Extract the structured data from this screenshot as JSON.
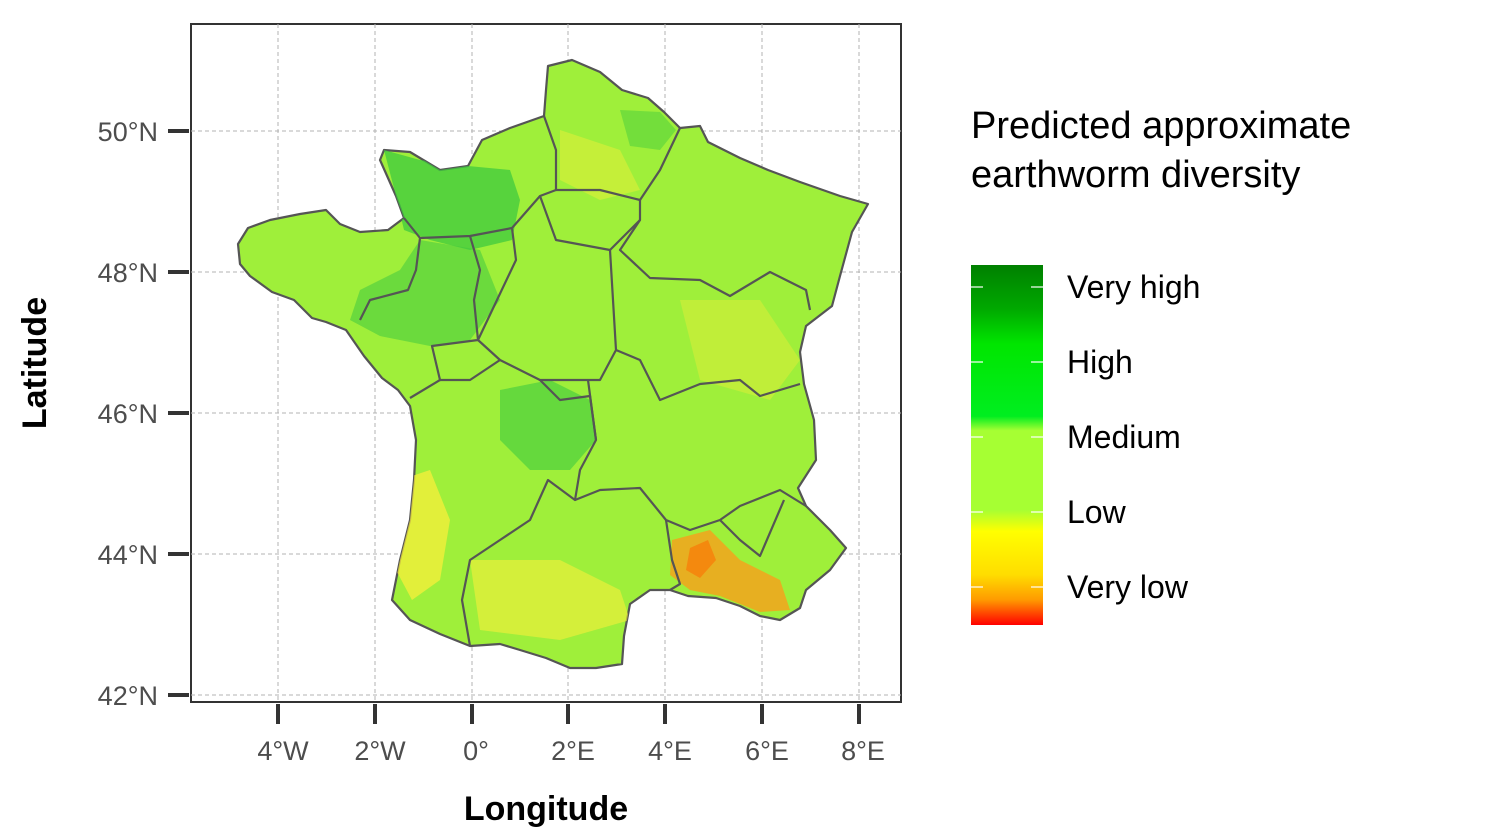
{
  "map": {
    "type": "choropleth-raster",
    "xlabel": "Longitude",
    "ylabel": "Latitude",
    "xlim": [
      -6,
      8.8
    ],
    "ylim": [
      42,
      51.5
    ],
    "x_ticks": [
      {
        "value": -4,
        "label": "4°W"
      },
      {
        "value": -2,
        "label": "2°W"
      },
      {
        "value": 0,
        "label": "0°"
      },
      {
        "value": 2,
        "label": "2°E"
      },
      {
        "value": 4,
        "label": "4°E"
      },
      {
        "value": 6,
        "label": "6°E"
      },
      {
        "value": 8,
        "label": "8°E"
      }
    ],
    "y_ticks": [
      {
        "value": 42,
        "label": "42°N"
      },
      {
        "value": 44,
        "label": "44°N"
      },
      {
        "value": 46,
        "label": "46°N"
      },
      {
        "value": 48,
        "label": "48°N"
      },
      {
        "value": 50,
        "label": "50°N"
      }
    ],
    "grid": true,
    "legend": {
      "title_line1": "Predicted approximate",
      "title_line2": "earthworm diversity",
      "placement": "right",
      "levels": [
        "Very high",
        "High",
        "Medium",
        "Low",
        "Very low"
      ],
      "gradient_colors": [
        {
          "level": "Very high",
          "color": "#008000"
        },
        {
          "level": "High",
          "color": "#00e600"
        },
        {
          "level": "Medium",
          "color": "#a6ff33"
        },
        {
          "level": "Low",
          "color": "#ffff00"
        },
        {
          "level": "Very low",
          "color": "#ff0000"
        }
      ]
    },
    "colors": {
      "dominant": "#9fef3a",
      "high_patches": "#3fc93f",
      "low_patches": "#ffef3a",
      "very_low_patches": "#ff8c1a",
      "border": "#555555"
    }
  }
}
